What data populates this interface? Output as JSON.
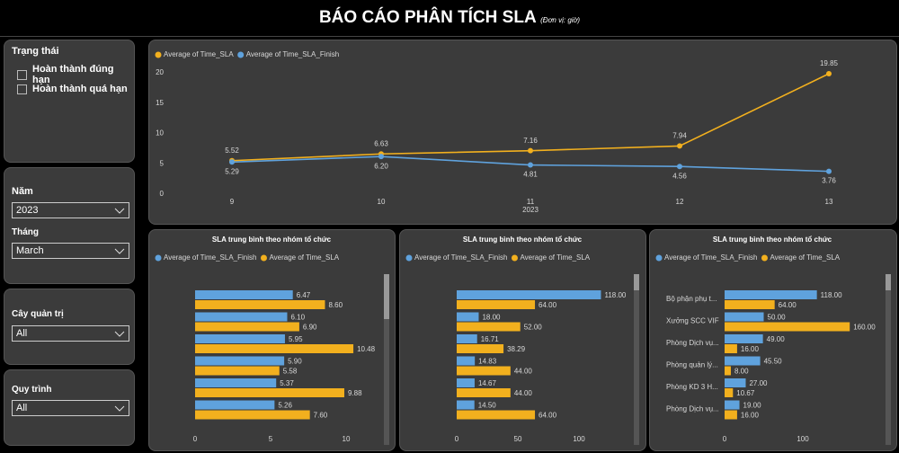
{
  "header": {
    "title": "BÁO CÁO PHÂN TÍCH SLA",
    "unit": "(Đơn vị: giờ)"
  },
  "filters": {
    "status": {
      "label": "Trạng thái",
      "options": [
        "Hoàn thành đúng hạn",
        "Hoàn thành quá hạn"
      ]
    },
    "year": {
      "label": "Năm",
      "value": "2023"
    },
    "month": {
      "label": "Tháng",
      "value": "March"
    },
    "tree": {
      "label": "Cây quản trị",
      "value": "All"
    },
    "process": {
      "label": "Quy trình",
      "value": "All"
    }
  },
  "chart_data": [
    {
      "type": "line",
      "categories": [
        "9",
        "10",
        "11",
        "12",
        "13"
      ],
      "x_group_label": "2023",
      "ylim": [
        0,
        20
      ],
      "yticks": [
        0,
        5,
        10,
        15,
        20
      ],
      "series": [
        {
          "name": "Average of Time_SLA",
          "color": "#f2b01e",
          "values": [
            5.52,
            6.63,
            7.16,
            7.94,
            19.85
          ],
          "value_labels": [
            "5.52",
            "6.63",
            "7.16",
            "7.94",
            "19.85"
          ]
        },
        {
          "name": "Average of Time_SLA_Finish",
          "color": "#5fa2dd",
          "values": [
            5.29,
            6.2,
            4.81,
            4.56,
            3.76
          ],
          "value_labels": [
            "5.29",
            "6.20",
            "4.81",
            "4.56",
            "3.76"
          ]
        }
      ]
    },
    {
      "type": "bar",
      "orientation": "horizontal",
      "title": "SLA trung bình theo nhóm tổ chức",
      "categories": [
        null,
        null,
        null,
        null,
        null,
        null
      ],
      "xlim": [
        0,
        12
      ],
      "xticks": [
        0,
        5,
        10
      ],
      "series": [
        {
          "name": "Average of Time_SLA_Finish",
          "color": "#5fa2dd",
          "values": [
            6.47,
            6.1,
            5.95,
            5.9,
            5.37,
            5.26
          ],
          "value_labels": [
            "6.47",
            "6.10",
            "5.95",
            "5.90",
            "5.37",
            "5.26"
          ]
        },
        {
          "name": "Average of Time_SLA",
          "color": "#f2b01e",
          "values": [
            8.6,
            6.9,
            10.48,
            5.58,
            9.88,
            7.6
          ],
          "value_labels": [
            "8.60",
            "6.90",
            "10.48",
            "5.58",
            "9.88",
            "7.60"
          ]
        }
      ]
    },
    {
      "type": "bar",
      "orientation": "horizontal",
      "title": "SLA trung bình theo nhóm tổ chức",
      "categories": [
        null,
        null,
        null,
        null,
        null,
        null
      ],
      "xlim": [
        0,
        140
      ],
      "xticks": [
        0,
        50,
        100
      ],
      "series": [
        {
          "name": "Average of Time_SLA_Finish",
          "color": "#5fa2dd",
          "values": [
            118,
            18,
            16.71,
            14.83,
            14.67,
            14.5
          ],
          "value_labels": [
            "118.00",
            "18.00",
            "16.71",
            "14.83",
            "14.67",
            "14.50"
          ]
        },
        {
          "name": "Average of Time_SLA",
          "color": "#f2b01e",
          "values": [
            64,
            52,
            38.29,
            44,
            44,
            64
          ],
          "value_labels": [
            "64.00",
            "52.00",
            "38.29",
            "44.00",
            "44.00",
            "64.00"
          ]
        }
      ]
    },
    {
      "type": "bar",
      "orientation": "horizontal",
      "title": "SLA trung bình theo nhóm tổ chức",
      "categories": [
        "Bộ phận phụ t...",
        "Xưởng SCC VIF",
        "Phòng Dịch vụ...",
        "Phòng quản lý...",
        "Phòng KD 3 H...",
        "Phòng Dịch vụ..."
      ],
      "xlim": [
        0,
        180
      ],
      "xticks": [
        0,
        100
      ],
      "series": [
        {
          "name": "Average of Time_SLA_Finish",
          "color": "#5fa2dd",
          "values": [
            118,
            50,
            49,
            45.5,
            27,
            19
          ],
          "value_labels": [
            "118.00",
            "50.00",
            "49.00",
            "45.50",
            "27.00",
            "19.00"
          ]
        },
        {
          "name": "Average of Time_SLA",
          "color": "#f2b01e",
          "values": [
            64,
            160,
            16,
            8,
            10.67,
            16
          ],
          "value_labels": [
            "64.00",
            "160.00",
            "16.00",
            "8.00",
            "10.67",
            "16.00"
          ]
        }
      ]
    }
  ]
}
